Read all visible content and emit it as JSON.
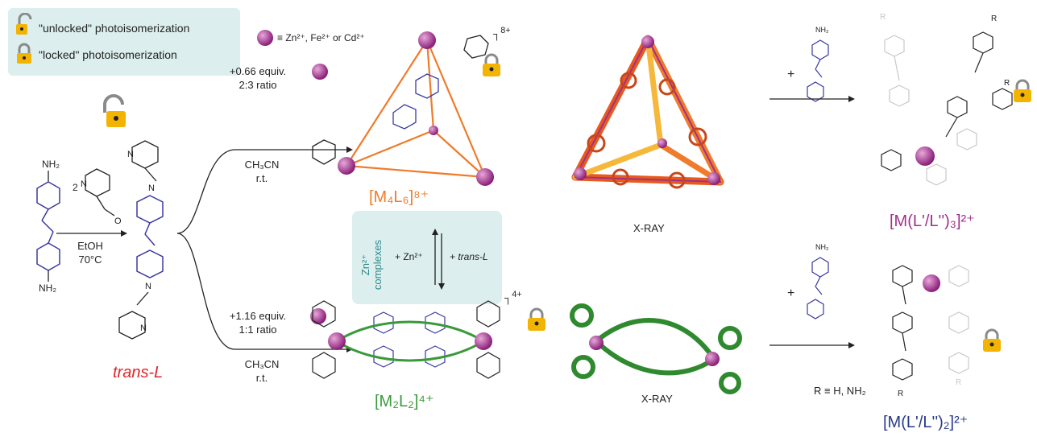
{
  "legend": {
    "unlocked_label": "\"unlocked\" photoisomerization",
    "locked_label": "\"locked\" photoisomerization"
  },
  "metal_note": "≡ Zn²⁺, Fe²⁺ or Cd²⁺",
  "first_step": {
    "equiv": "2",
    "solvent": "EtOH",
    "temperature": "70°C"
  },
  "trans_L_label": "trans-L",
  "upper_route": {
    "equiv": "+0.66 equiv.",
    "ratio": "2:3 ratio",
    "solvent": "CH₃CN",
    "temp": "r.t.",
    "charge": "8+",
    "product_label": "[M₄L₆]⁸⁺"
  },
  "lower_route": {
    "equiv": "+1.16 equiv.",
    "ratio": "1:1 ratio",
    "solvent": "CH₃CN",
    "temp": "r.t.",
    "charge": "4+",
    "product_label": "[M₂L₂]⁴⁺"
  },
  "equilibrium": {
    "side_label": "Zn²⁺ complexes",
    "left_text": "+ Zn²⁺",
    "right_text": "+ trans-L"
  },
  "xray_top": "X-RAY",
  "xray_bottom": "X-RAY",
  "right_top": {
    "plus": "+",
    "nh2": "NH₂",
    "r_label": "R",
    "product_label": "[M(L'/L'')₃]²⁺"
  },
  "right_bottom": {
    "plus": "+",
    "nh2": "NH₂",
    "r_label": "R",
    "r_def": "R ≡ H, NH₂",
    "product_label": "[M(L'/L'')₂]²⁺"
  },
  "atoms": {
    "n": "N",
    "nh2": "NH₂",
    "o": "O"
  },
  "colors": {
    "azo_blue": "#3a3aa0",
    "metal_purple": "#a0308c",
    "tetra_orange": "#f07b2a",
    "helicate_green": "#3a9a3a",
    "trans_red": "#e0262a",
    "lock_gold": "#f2b400",
    "m3_label": "#a0308c",
    "m2_label_blue": "#2a3a8a",
    "legend_bg": "#dcefee"
  }
}
